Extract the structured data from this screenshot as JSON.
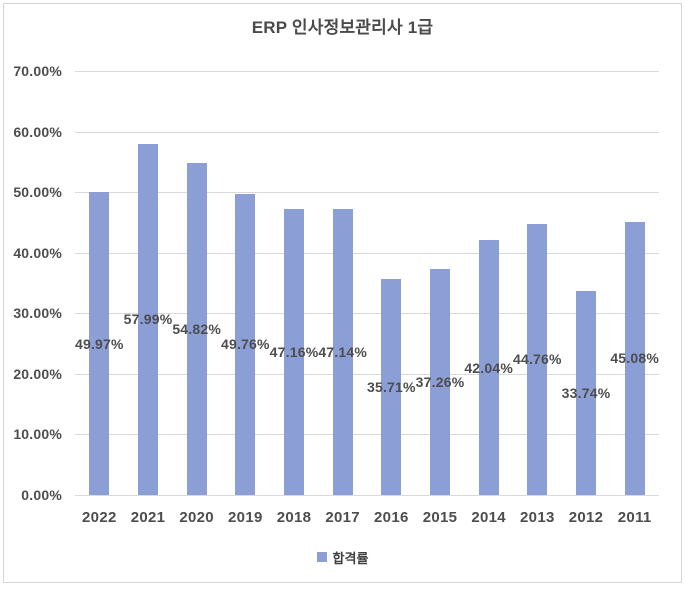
{
  "chart": {
    "colors": {
      "bar": "#8C9ED6",
      "gridline": "#D9D9D9",
      "axis_text": "#4D4D4D",
      "title_text": "#4A4A4A",
      "border": "#D6D6D6",
      "background": "#FFFFFF"
    }
  },
  "chart_data": {
    "type": "bar",
    "title": "ERP 인사정보관리사 1급",
    "categories": [
      "2022",
      "2021",
      "2020",
      "2019",
      "2018",
      "2017",
      "2016",
      "2015",
      "2014",
      "2013",
      "2012",
      "2011"
    ],
    "series": [
      {
        "name": "합격률",
        "values": [
          49.97,
          57.99,
          54.82,
          49.76,
          47.16,
          47.14,
          35.71,
          37.26,
          42.04,
          44.76,
          33.74,
          45.08
        ],
        "data_labels": [
          "49.97%",
          "57.99%",
          "54.82%",
          "49.76%",
          "47.16%",
          "47.14%",
          "35.71%",
          "37.26%",
          "42.04%",
          "44.76%",
          "33.74%",
          "45.08%"
        ]
      }
    ],
    "xlabel": "",
    "ylabel": "",
    "ylim": [
      0,
      70
    ],
    "ytick_step": 10,
    "ytick_labels": [
      "0.00%",
      "10.00%",
      "20.00%",
      "30.00%",
      "40.00%",
      "50.00%",
      "60.00%",
      "70.00%"
    ],
    "grid": true,
    "legend_position": "bottom",
    "data_label_position": "center"
  }
}
